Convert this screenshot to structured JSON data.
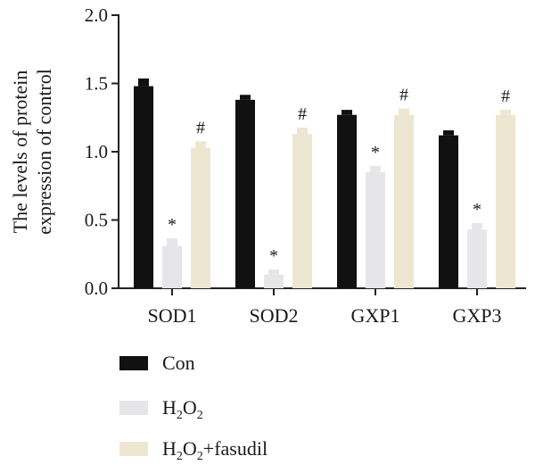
{
  "chart_data": {
    "type": "bar",
    "title": "",
    "ylabel": "The levels of protein expression of control",
    "ylabel_lines": [
      "The levels of protein",
      "expression of control"
    ],
    "xlabel": "",
    "ylim": [
      0,
      2.0
    ],
    "yticks": [
      0.0,
      0.5,
      1.0,
      1.5,
      2.0
    ],
    "ytick_labels": [
      "0.0",
      "0.5",
      "1.0",
      "1.5",
      "2.0"
    ],
    "categories": [
      "SOD1",
      "SOD2",
      "GXP1",
      "GXP3"
    ],
    "series": [
      {
        "name": "Con",
        "name_parts": [
          {
            "t": "Con",
            "sub": false
          }
        ],
        "color": "#111111",
        "values": [
          1.48,
          1.38,
          1.27,
          1.12
        ],
        "errors": [
          0.05,
          0.03,
          0.03,
          0.03
        ],
        "annotations": [
          "",
          "",
          "",
          ""
        ]
      },
      {
        "name": "H2O2",
        "name_parts": [
          {
            "t": "H",
            "sub": false
          },
          {
            "t": "2",
            "sub": true
          },
          {
            "t": "O",
            "sub": false
          },
          {
            "t": "2",
            "sub": true
          }
        ],
        "color": "#e6e6e8",
        "values": [
          0.31,
          0.1,
          0.85,
          0.43
        ],
        "errors": [
          0.05,
          0.03,
          0.04,
          0.04
        ],
        "annotations": [
          "*",
          "*",
          "*",
          "*"
        ]
      },
      {
        "name": "H2O2+fasudil",
        "name_parts": [
          {
            "t": "H",
            "sub": false
          },
          {
            "t": "2",
            "sub": true
          },
          {
            "t": "O",
            "sub": false
          },
          {
            "t": "2",
            "sub": true
          },
          {
            "t": "+fasudil",
            "sub": false
          }
        ],
        "color": "#ede7d1",
        "values": [
          1.03,
          1.13,
          1.27,
          1.27
        ],
        "errors": [
          0.04,
          0.04,
          0.04,
          0.03
        ],
        "annotations": [
          "#",
          "#",
          "#",
          "#"
        ]
      }
    ],
    "legend_placement": "bottom-left",
    "grid": false
  }
}
